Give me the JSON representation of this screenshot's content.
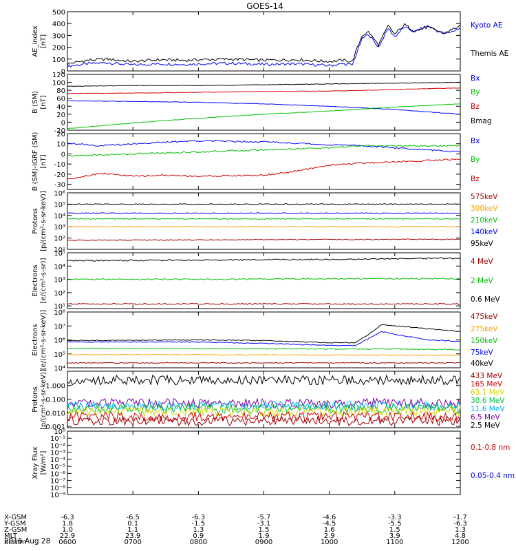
{
  "title": "GOES-14",
  "date_label": "2016 Aug 28",
  "colors": {
    "black": "#000000",
    "blue": "#0000ff",
    "green": "#00c000",
    "red": "#d00000",
    "darkred": "#a00000",
    "orange": "#ffa000",
    "cyan": "#00b0ff",
    "yellow": "#d8d800",
    "purple": "#8000a0",
    "dkgreen": "#00c040"
  },
  "ephemeris": {
    "row_labels": [
      "X-GSM",
      "Y-GSM",
      "Z-GSM",
      "MLT",
      "hhmm"
    ],
    "columns": [
      [
        "-6.3",
        "1.8",
        "1.0",
        "22.9",
        "0600"
      ],
      [
        "-6.5",
        "0.1",
        "1.1",
        "23.9",
        "0700"
      ],
      [
        "-6.3",
        "-1.5",
        "1.3",
        "0.9",
        "0800"
      ],
      [
        "-5.7",
        "-3.1",
        "1.5",
        "1.9",
        "0900"
      ],
      [
        "-4.6",
        "-4.5",
        "1.6",
        "2.9",
        "1000"
      ],
      [
        "-3.3",
        "-5.5",
        "1.5",
        "3.9",
        "1100"
      ],
      [
        "-1.7",
        "-6.3",
        "1.3",
        "4.8",
        "1200"
      ]
    ]
  },
  "chart_data": [
    {
      "type": "line",
      "ylabel": "AE_index [nT]",
      "ylim": [
        0,
        500
      ],
      "yticks": [
        "0",
        "100",
        "200",
        "300",
        "400",
        "500"
      ],
      "x": [
        "0600",
        "0700",
        "0800",
        "0900",
        "1000",
        "1100",
        "1200"
      ],
      "legend": [
        {
          "text": "Kyoto AE",
          "color": "#0000ff"
        },
        {
          "text": "Themis AE",
          "color": "#000000"
        }
      ],
      "series": [
        {
          "name": "Kyoto AE",
          "color": "#0000ff",
          "x": [
            6.0,
            6.3,
            6.6,
            7.0,
            7.4,
            7.8,
            8.0,
            8.5,
            9.0,
            9.5,
            10.0,
            10.2,
            10.35,
            10.5,
            10.6,
            10.75,
            10.9,
            11.0,
            11.15,
            11.3,
            11.5,
            11.75,
            12.0
          ],
          "y": [
            40,
            60,
            70,
            50,
            60,
            55,
            60,
            65,
            55,
            60,
            45,
            60,
            50,
            270,
            310,
            200,
            360,
            290,
            370,
            330,
            380,
            310,
            360
          ]
        },
        {
          "name": "Themis AE",
          "color": "#000000",
          "x": [
            6.0,
            6.3,
            6.6,
            7.0,
            7.4,
            7.8,
            8.0,
            8.5,
            9.0,
            9.5,
            10.0,
            10.2,
            10.35,
            10.5,
            10.6,
            10.75,
            10.9,
            11.0,
            11.15,
            11.3,
            11.5,
            11.75,
            12.0
          ],
          "y": [
            60,
            90,
            100,
            80,
            95,
            90,
            95,
            100,
            90,
            95,
            80,
            90,
            80,
            300,
            330,
            220,
            380,
            310,
            390,
            340,
            370,
            320,
            380
          ]
        }
      ]
    },
    {
      "type": "line",
      "ylabel": "B (SM) [nT]",
      "ylim": [
        -20,
        120
      ],
      "yticks": [
        "-20",
        "0",
        "20",
        "40",
        "60",
        "80",
        "100",
        "120"
      ],
      "legend": [
        {
          "text": "Bx",
          "color": "#0000ff"
        },
        {
          "text": "By",
          "color": "#00c000"
        },
        {
          "text": "Bz",
          "color": "#d00000"
        },
        {
          "text": "Bmag",
          "color": "#000000"
        }
      ],
      "series": [
        {
          "name": "Bmag",
          "color": "#000000",
          "x": [
            6,
            7,
            8,
            9,
            10,
            11,
            12
          ],
          "y": [
            90,
            92,
            92,
            94,
            96,
            98,
            100
          ]
        },
        {
          "name": "Bz",
          "color": "#d00000",
          "x": [
            6,
            7,
            8,
            9,
            10,
            11,
            12
          ],
          "y": [
            72,
            73,
            75,
            77,
            78,
            82,
            86
          ]
        },
        {
          "name": "Bx",
          "color": "#0000ff",
          "x": [
            6,
            7,
            8,
            9,
            10,
            11,
            12
          ],
          "y": [
            54,
            52,
            50,
            46,
            40,
            32,
            20
          ]
        },
        {
          "name": "By",
          "color": "#00c000",
          "x": [
            6,
            7,
            8,
            9,
            10,
            11,
            12
          ],
          "y": [
            -16,
            -2,
            10,
            20,
            28,
            38,
            46
          ]
        }
      ]
    },
    {
      "type": "line",
      "ylabel": "B (SM)-IGRF (SM) [nT]",
      "ylim": [
        -35,
        20
      ],
      "yticks": [
        "-30",
        "-20",
        "-10",
        "0",
        "10",
        "20"
      ],
      "legend": [
        {
          "text": "Bx",
          "color": "#0000ff"
        },
        {
          "text": "By",
          "color": "#00c000"
        },
        {
          "text": "Bz",
          "color": "#d00000"
        }
      ],
      "series": [
        {
          "name": "Bx",
          "color": "#0000ff",
          "x": [
            6,
            6.5,
            7,
            8,
            9,
            10,
            10.5,
            11,
            12
          ],
          "y": [
            11,
            8,
            10,
            13,
            12,
            9,
            8,
            6,
            2
          ]
        },
        {
          "name": "By",
          "color": "#00c000",
          "x": [
            6,
            6.5,
            7,
            8,
            9,
            10,
            10.5,
            11,
            12
          ],
          "y": [
            -2,
            -1,
            0,
            2,
            4,
            6,
            8,
            8,
            8
          ]
        },
        {
          "name": "Bz",
          "color": "#d00000",
          "x": [
            6,
            6.5,
            7,
            7.5,
            8,
            9,
            9.5,
            10,
            10.5,
            11,
            12
          ],
          "y": [
            -25,
            -19,
            -22,
            -21,
            -22,
            -21,
            -17,
            -11,
            -9,
            -8,
            -5
          ]
        }
      ]
    },
    {
      "type": "line",
      "ylabel": "Protons [p/(cm²-s-sr-keV)]",
      "log": true,
      "ylim": [
        1,
        6
      ],
      "yticks": [
        "10¹",
        "10²",
        "10³",
        "10⁴",
        "10⁵",
        "10⁶"
      ],
      "legend": [
        {
          "text": "575keV",
          "color": "#a00000"
        },
        {
          "text": "300keV",
          "color": "#ffa000"
        },
        {
          "text": "210keV",
          "color": "#00c000"
        },
        {
          "text": "140keV",
          "color": "#0000ff"
        },
        {
          "text": "95keV",
          "color": "#000000"
        }
      ],
      "series": [
        {
          "name": "95keV",
          "color": "#000000",
          "x": [
            6,
            12
          ],
          "y": [
            5.0,
            5.0
          ]
        },
        {
          "name": "140keV",
          "color": "#0000ff",
          "x": [
            6,
            12
          ],
          "y": [
            4.2,
            4.2
          ]
        },
        {
          "name": "210keV",
          "color": "#00c000",
          "x": [
            6,
            12
          ],
          "y": [
            3.7,
            3.7
          ]
        },
        {
          "name": "300keV",
          "color": "#ffa000",
          "x": [
            6,
            12
          ],
          "y": [
            3.0,
            3.0
          ]
        },
        {
          "name": "575keV",
          "color": "#a00000",
          "x": [
            6,
            12
          ],
          "y": [
            1.8,
            1.9
          ]
        }
      ]
    },
    {
      "type": "line",
      "ylabel": "Electrons [e/(cm²-s-sr)]",
      "log": true,
      "ylim": [
        0.8,
        5
      ],
      "yticks": [
        "10¹",
        "10²",
        "10³",
        "10⁴",
        "10⁵"
      ],
      "legend": [
        {
          "text": "4 MeV",
          "color": "#a00000"
        },
        {
          "text": "2 MeV",
          "color": "#00c000"
        },
        {
          "text": "0.6 MeV",
          "color": "#000000"
        }
      ],
      "series": [
        {
          "name": "0.6 MeV",
          "color": "#000000",
          "x": [
            6,
            8,
            10,
            11,
            12
          ],
          "y": [
            4.4,
            4.45,
            4.5,
            4.55,
            4.6
          ]
        },
        {
          "name": "2 MeV",
          "color": "#00c000",
          "x": [
            6,
            8,
            10,
            11,
            12
          ],
          "y": [
            3.0,
            3.0,
            3.05,
            3.05,
            3.05
          ]
        },
        {
          "name": "4 MeV",
          "color": "#a00000",
          "x": [
            6,
            12
          ],
          "y": [
            1.15,
            1.15
          ]
        }
      ]
    },
    {
      "type": "line",
      "ylabel": "Electrons [e/(cm²-s-sr-keV)]",
      "log": true,
      "ylim": [
        4,
        8
      ],
      "yticks": [
        "10⁴",
        "10⁵",
        "10⁶",
        "10⁷",
        "10⁸"
      ],
      "legend": [
        {
          "text": "475keV",
          "color": "#a00000"
        },
        {
          "text": "275keV",
          "color": "#ffa000"
        },
        {
          "text": "150keV",
          "color": "#00c000"
        },
        {
          "text": "75keV",
          "color": "#0000ff"
        },
        {
          "text": "40keV",
          "color": "#000000"
        }
      ],
      "series": [
        {
          "name": "40keV",
          "color": "#000000",
          "x": [
            6,
            8,
            9,
            10,
            10.4,
            10.6,
            10.8,
            11,
            11.5,
            12
          ],
          "y": [
            5.95,
            6.0,
            5.95,
            5.8,
            5.8,
            6.4,
            7.1,
            7.0,
            6.8,
            6.6
          ]
        },
        {
          "name": "75keV",
          "color": "#0000ff",
          "x": [
            6,
            8,
            9,
            10,
            10.4,
            10.6,
            10.8,
            11,
            11.5,
            12
          ],
          "y": [
            5.85,
            5.85,
            5.75,
            5.6,
            5.6,
            6.1,
            6.6,
            6.4,
            6.0,
            5.9
          ]
        },
        {
          "name": "150keV",
          "color": "#00c000",
          "x": [
            6,
            10,
            10.4,
            11,
            12
          ],
          "y": [
            5.4,
            5.35,
            5.35,
            5.35,
            5.3
          ]
        },
        {
          "name": "275keV",
          "color": "#ffa000",
          "x": [
            6,
            12
          ],
          "y": [
            4.95,
            4.9
          ]
        },
        {
          "name": "475keV",
          "color": "#a00000",
          "x": [
            6,
            12
          ],
          "y": [
            4.35,
            4.35
          ]
        }
      ]
    },
    {
      "type": "line",
      "ylabel": "Protons [p/(cm²-s-sr-keV)]",
      "log": true,
      "ylim": [
        -3.1,
        1.05
      ],
      "yticks": [
        "0.001",
        "0.010",
        "0.100",
        "1.000"
      ],
      "legend": [
        {
          "text": "433 MeV",
          "color": "#a00000"
        },
        {
          "text": "165 MeV",
          "color": "#d00000"
        },
        {
          "text": "63.1 MeV",
          "color": "#d8d800"
        },
        {
          "text": "30.6 MeV",
          "color": "#00c040"
        },
        {
          "text": "11.6 MeV",
          "color": "#00b0ff"
        },
        {
          "text": "6.5 MeV",
          "color": "#8000a0"
        },
        {
          "text": "2.5 MeV",
          "color": "#000000"
        }
      ],
      "series": [
        {
          "name": "2.5 MeV",
          "color": "#000000",
          "x": [
            6,
            12
          ],
          "y": [
            0.4,
            0.4
          ]
        },
        {
          "name": "6.5 MeV",
          "color": "#8000a0",
          "x": [
            6,
            12
          ],
          "y": [
            -1.3,
            -1.3
          ]
        },
        {
          "name": "11.6 MeV",
          "color": "#00b0ff",
          "x": [
            6,
            12
          ],
          "y": [
            -1.5,
            -1.5
          ]
        },
        {
          "name": "30.6 MeV",
          "color": "#00c040",
          "x": [
            6,
            12
          ],
          "y": [
            -1.7,
            -1.7
          ]
        },
        {
          "name": "63.1 MeV",
          "color": "#d8d800",
          "x": [
            6,
            12
          ],
          "y": [
            -1.9,
            -1.9
          ]
        },
        {
          "name": "165 MeV",
          "color": "#d00000",
          "x": [
            6,
            12
          ],
          "y": [
            -2.3,
            -2.3
          ]
        },
        {
          "name": "433 MeV",
          "color": "#a00000",
          "x": [
            6,
            12
          ],
          "y": [
            -2.6,
            -2.6
          ]
        }
      ]
    },
    {
      "type": "line",
      "ylabel": "Xray Flux [W/m²]",
      "log": true,
      "ylim": [
        -9,
        0
      ],
      "yticks": [
        "10⁻⁹",
        "10⁻⁸",
        "10⁻⁷",
        "10⁻⁶",
        "10⁻⁵",
        "10⁻⁴",
        "10⁻³",
        "10⁻²",
        "10⁻¹",
        "10⁰"
      ],
      "legend": [
        {
          "text": "0.1-0.8 nm",
          "color": "#d00000"
        },
        {
          "text": "0.05-0.4 nm",
          "color": "#0000ff"
        }
      ],
      "series": []
    }
  ]
}
